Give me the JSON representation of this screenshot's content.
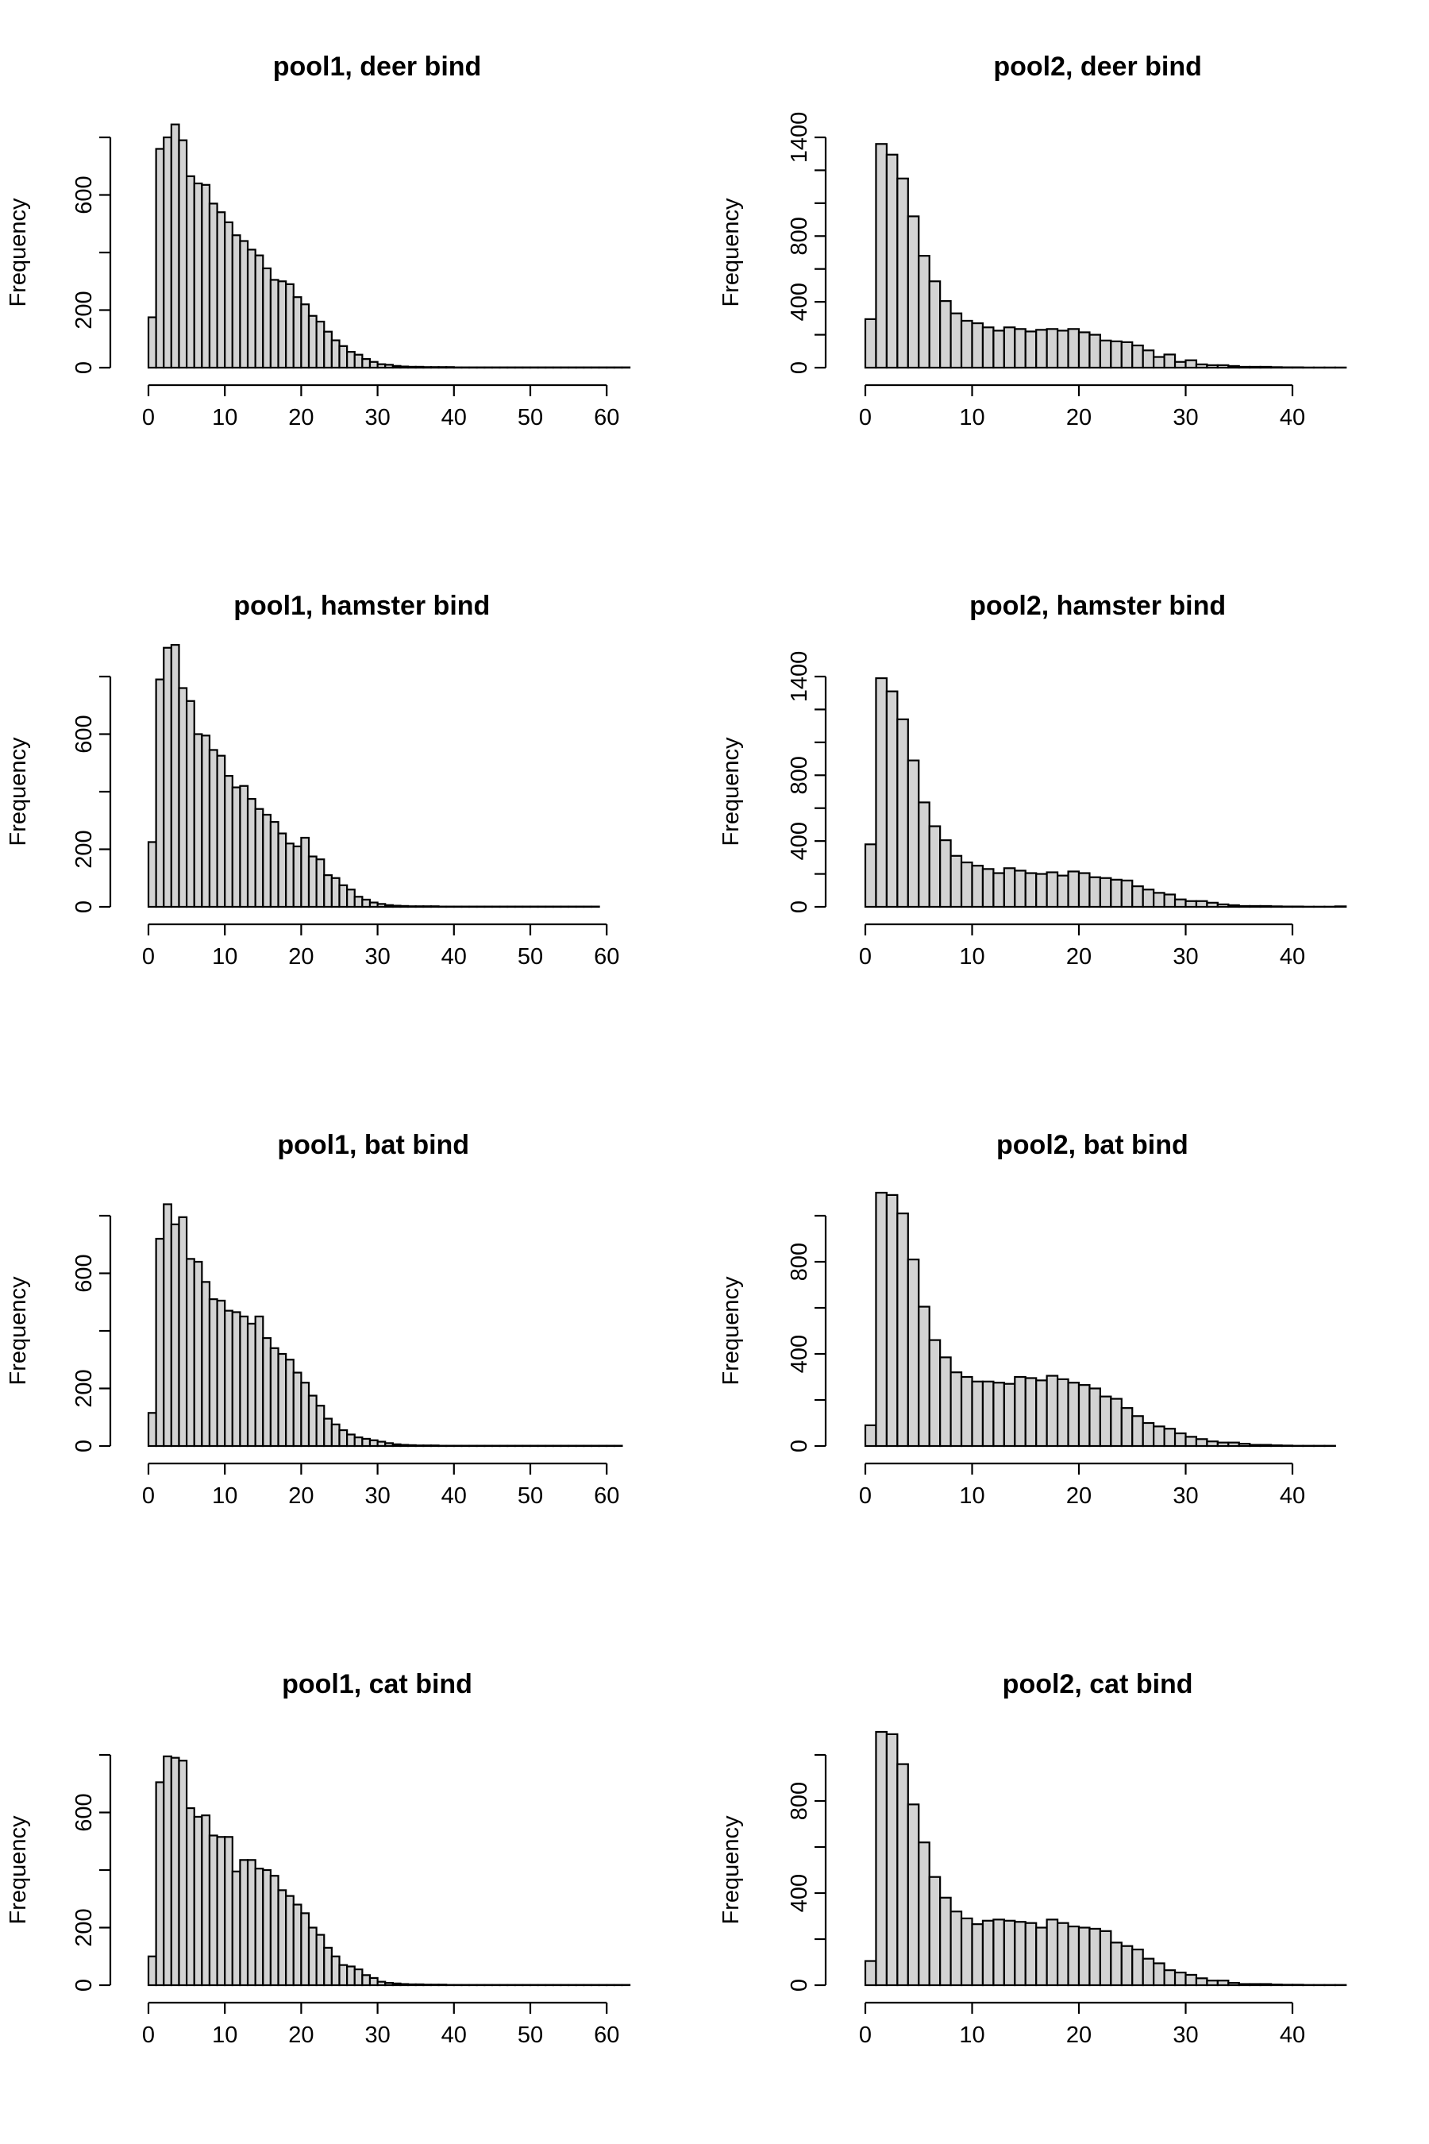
{
  "chart_data": [
    {
      "type": "bar",
      "title": "pool1, deer bind",
      "ylabel": "Frequency",
      "xlabel": "",
      "bin_width": 1,
      "x_range": [
        0,
        63
      ],
      "xticks": [
        0,
        10,
        20,
        30,
        40,
        50,
        60
      ],
      "yticks": [
        0,
        200,
        600
      ],
      "y_minor_ticks": [
        400,
        800
      ],
      "y_axis_max": 800,
      "grid": false,
      "values": [
        175,
        760,
        800,
        845,
        790,
        665,
        640,
        635,
        570,
        540,
        505,
        460,
        440,
        410,
        390,
        345,
        305,
        300,
        290,
        245,
        220,
        180,
        160,
        125,
        95,
        75,
        55,
        45,
        30,
        20,
        12,
        10,
        6,
        4,
        3,
        3,
        2,
        2,
        2,
        2,
        1,
        1,
        1,
        1,
        1,
        1,
        1,
        1,
        1,
        1,
        1,
        1,
        1,
        1,
        1,
        1,
        1,
        1,
        1,
        1,
        1,
        1,
        1
      ]
    },
    {
      "type": "bar",
      "title": "pool2, deer bind",
      "ylabel": "Frequency",
      "xlabel": "",
      "bin_width": 1,
      "x_range": [
        0,
        45
      ],
      "xticks": [
        0,
        10,
        20,
        30,
        40
      ],
      "yticks": [
        0,
        400,
        800,
        1400
      ],
      "y_minor_ticks": [
        200,
        600,
        1000,
        1200
      ],
      "y_axis_max": 1400,
      "grid": false,
      "values": [
        295,
        1360,
        1295,
        1150,
        920,
        680,
        525,
        405,
        330,
        285,
        270,
        245,
        225,
        245,
        235,
        220,
        230,
        235,
        225,
        235,
        215,
        200,
        165,
        160,
        155,
        135,
        105,
        65,
        80,
        35,
        45,
        20,
        15,
        15,
        10,
        5,
        5,
        5,
        3,
        2,
        2,
        1,
        1,
        1,
        1
      ]
    },
    {
      "type": "bar",
      "title": "pool1, hamster bind",
      "ylabel": "Frequency",
      "xlabel": "",
      "bin_width": 1,
      "x_range": [
        0,
        59
      ],
      "xticks": [
        0,
        10,
        20,
        30,
        40,
        50,
        60
      ],
      "yticks": [
        0,
        200,
        600
      ],
      "y_minor_ticks": [
        400,
        800
      ],
      "y_axis_max": 800,
      "grid": false,
      "values": [
        225,
        790,
        900,
        910,
        760,
        715,
        600,
        595,
        545,
        525,
        455,
        415,
        420,
        375,
        340,
        320,
        295,
        255,
        220,
        210,
        240,
        175,
        165,
        110,
        100,
        75,
        60,
        35,
        25,
        15,
        10,
        6,
        4,
        3,
        2,
        2,
        2,
        2,
        1,
        1,
        1,
        1,
        1,
        1,
        1,
        1,
        1,
        1,
        1,
        1,
        1,
        1,
        1,
        1,
        1,
        1,
        1,
        1,
        1
      ]
    },
    {
      "type": "bar",
      "title": "pool2, hamster bind",
      "ylabel": "Frequency",
      "xlabel": "",
      "bin_width": 1,
      "x_range": [
        0,
        45
      ],
      "xticks": [
        0,
        10,
        20,
        30,
        40
      ],
      "yticks": [
        0,
        400,
        800,
        1400
      ],
      "y_minor_ticks": [
        200,
        600,
        1000,
        1200
      ],
      "y_axis_max": 1400,
      "grid": false,
      "values": [
        380,
        1390,
        1310,
        1140,
        890,
        635,
        490,
        405,
        310,
        270,
        250,
        230,
        205,
        235,
        220,
        205,
        200,
        210,
        190,
        215,
        205,
        180,
        175,
        165,
        160,
        125,
        105,
        85,
        75,
        45,
        35,
        35,
        25,
        15,
        10,
        5,
        5,
        5,
        3,
        2,
        2,
        1,
        1,
        1,
        3
      ]
    },
    {
      "type": "bar",
      "title": "pool1, bat bind",
      "ylabel": "Frequency",
      "xlabel": "",
      "bin_width": 1,
      "x_range": [
        0,
        62
      ],
      "xticks": [
        0,
        10,
        20,
        30,
        40,
        50,
        60
      ],
      "yticks": [
        0,
        200,
        600
      ],
      "y_minor_ticks": [
        400,
        800
      ],
      "y_axis_max": 800,
      "grid": false,
      "values": [
        115,
        720,
        840,
        770,
        795,
        650,
        640,
        570,
        510,
        505,
        470,
        465,
        450,
        425,
        450,
        375,
        340,
        320,
        300,
        255,
        220,
        175,
        140,
        95,
        75,
        55,
        40,
        30,
        25,
        20,
        15,
        10,
        6,
        4,
        3,
        2,
        2,
        2,
        1,
        1,
        1,
        1,
        1,
        1,
        1,
        1,
        1,
        1,
        1,
        1,
        1,
        1,
        1,
        1,
        1,
        1,
        1,
        1,
        1,
        1,
        1,
        1
      ]
    },
    {
      "type": "bar",
      "title": "pool2, bat bind",
      "ylabel": "Frequency",
      "xlabel": "",
      "bin_width": 1,
      "x_range": [
        0,
        44
      ],
      "xticks": [
        0,
        10,
        20,
        30,
        40
      ],
      "yticks": [
        0,
        400,
        800
      ],
      "y_minor_ticks": [
        200,
        600,
        1000
      ],
      "y_axis_max": 1000,
      "grid": false,
      "values": [
        90,
        1100,
        1090,
        1010,
        810,
        605,
        460,
        385,
        320,
        300,
        280,
        280,
        275,
        270,
        300,
        295,
        285,
        305,
        290,
        275,
        265,
        250,
        215,
        205,
        165,
        130,
        100,
        85,
        75,
        55,
        40,
        30,
        20,
        15,
        15,
        10,
        5,
        5,
        3,
        2,
        1,
        1,
        1,
        1
      ]
    },
    {
      "type": "bar",
      "title": "pool1, cat bind",
      "ylabel": "Frequency",
      "xlabel": "",
      "bin_width": 1,
      "x_range": [
        0,
        63
      ],
      "xticks": [
        0,
        10,
        20,
        30,
        40,
        50,
        60
      ],
      "yticks": [
        0,
        200,
        600
      ],
      "y_minor_ticks": [
        400,
        800
      ],
      "y_axis_max": 800,
      "grid": false,
      "values": [
        100,
        705,
        795,
        790,
        780,
        615,
        585,
        590,
        520,
        515,
        515,
        395,
        435,
        435,
        405,
        400,
        380,
        330,
        310,
        280,
        250,
        200,
        175,
        130,
        100,
        70,
        65,
        55,
        35,
        25,
        12,
        8,
        6,
        4,
        3,
        3,
        2,
        2,
        2,
        1,
        1,
        1,
        1,
        1,
        1,
        1,
        1,
        1,
        1,
        1,
        1,
        1,
        1,
        1,
        1,
        1,
        1,
        1,
        1,
        1,
        1,
        1,
        1
      ]
    },
    {
      "type": "bar",
      "title": "pool2, cat bind",
      "ylabel": "Frequency",
      "xlabel": "",
      "bin_width": 1,
      "x_range": [
        0,
        45
      ],
      "xticks": [
        0,
        10,
        20,
        30,
        40
      ],
      "yticks": [
        0,
        400,
        800
      ],
      "y_minor_ticks": [
        200,
        600,
        1000
      ],
      "y_axis_max": 1000,
      "grid": false,
      "values": [
        105,
        1100,
        1090,
        960,
        785,
        620,
        470,
        380,
        320,
        290,
        265,
        280,
        285,
        280,
        275,
        270,
        250,
        285,
        270,
        255,
        250,
        245,
        235,
        185,
        170,
        155,
        115,
        95,
        65,
        55,
        45,
        30,
        20,
        20,
        10,
        5,
        5,
        5,
        3,
        2,
        2,
        1,
        1,
        1,
        1
      ]
    }
  ]
}
